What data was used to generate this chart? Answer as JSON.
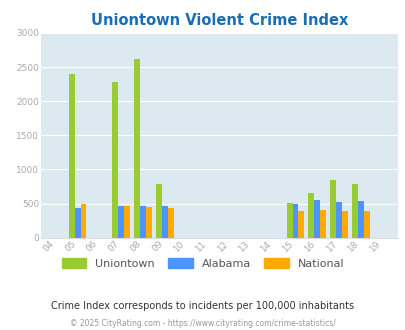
{
  "title": "Uniontown Violent Crime Index",
  "years": [
    "04",
    "05",
    "06",
    "07",
    "08",
    "09",
    "10",
    "11",
    "12",
    "13",
    "14",
    "15",
    "16",
    "17",
    "18",
    "19"
  ],
  "uniontown": [
    0,
    2400,
    0,
    2280,
    2620,
    790,
    0,
    0,
    0,
    0,
    0,
    510,
    660,
    840,
    790,
    0
  ],
  "alabama": [
    0,
    440,
    0,
    460,
    460,
    460,
    0,
    0,
    0,
    0,
    0,
    490,
    550,
    520,
    530,
    0
  ],
  "national": [
    0,
    490,
    0,
    470,
    450,
    430,
    0,
    0,
    0,
    0,
    0,
    390,
    400,
    390,
    390,
    0
  ],
  "color_uniontown": "#99cc33",
  "color_alabama": "#4d94ff",
  "color_national": "#ffaa00",
  "ylim": [
    0,
    3000
  ],
  "yticks": [
    0,
    500,
    1000,
    1500,
    2000,
    2500,
    3000
  ],
  "bg_color": "#dce9f0",
  "legend_labels": [
    "Uniontown",
    "Alabama",
    "National"
  ],
  "note": "Crime Index corresponds to incidents per 100,000 inhabitants",
  "footer": "© 2025 CityRating.com - https://www.cityrating.com/crime-statistics/"
}
